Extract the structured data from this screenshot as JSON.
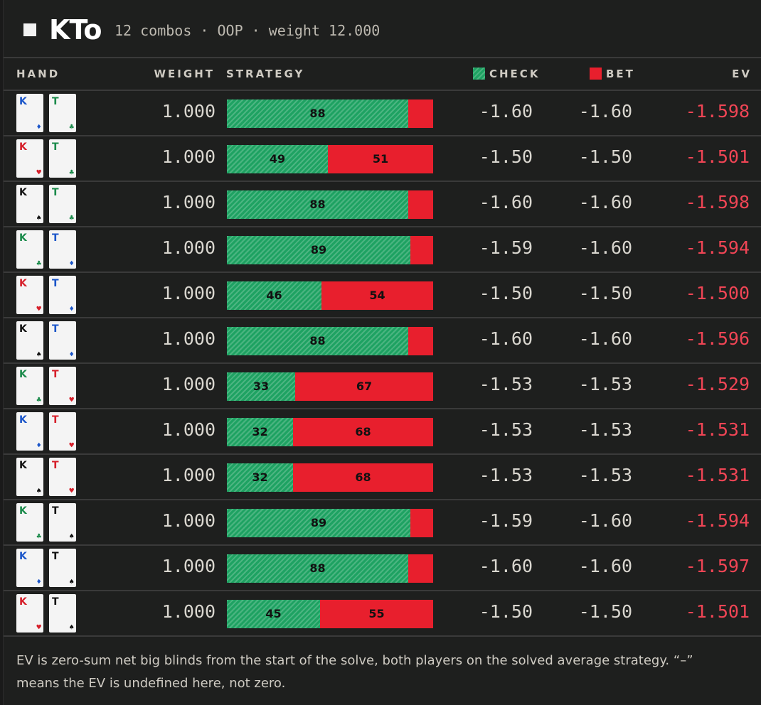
{
  "header": {
    "hand": "KTo",
    "subtitle": "12 combos · OOP · weight 12.000"
  },
  "columns": {
    "hand": "HAND",
    "weight": "WEIGHT",
    "strategy": "STRATEGY",
    "check": "CHECK",
    "bet": "BET",
    "ev": "EV"
  },
  "colors": {
    "check": "#1ea262",
    "bet": "#e81f2d",
    "ev": "#f04555",
    "red_suit": "#d61f2a",
    "blue_suit": "#1a55c9",
    "green_suit": "#1a8a4a",
    "black_suit": "#111111"
  },
  "rows": [
    {
      "c1": {
        "rank": "K",
        "suit": "♦",
        "color": "blue"
      },
      "c2": {
        "rank": "T",
        "suit": "♣",
        "color": "green"
      },
      "weight": "1.000",
      "check_pct": 88,
      "bet_pct": 12,
      "check_label": "88",
      "bet_label": "",
      "check_ev": "-1.60",
      "bet_ev": "-1.60",
      "ev": "-1.598"
    },
    {
      "c1": {
        "rank": "K",
        "suit": "♥",
        "color": "red"
      },
      "c2": {
        "rank": "T",
        "suit": "♣",
        "color": "green"
      },
      "weight": "1.000",
      "check_pct": 49,
      "bet_pct": 51,
      "check_label": "49",
      "bet_label": "51",
      "check_ev": "-1.50",
      "bet_ev": "-1.50",
      "ev": "-1.501"
    },
    {
      "c1": {
        "rank": "K",
        "suit": "♠",
        "color": "black"
      },
      "c2": {
        "rank": "T",
        "suit": "♣",
        "color": "green"
      },
      "weight": "1.000",
      "check_pct": 88,
      "bet_pct": 12,
      "check_label": "88",
      "bet_label": "",
      "check_ev": "-1.60",
      "bet_ev": "-1.60",
      "ev": "-1.598"
    },
    {
      "c1": {
        "rank": "K",
        "suit": "♣",
        "color": "green"
      },
      "c2": {
        "rank": "T",
        "suit": "♦",
        "color": "blue"
      },
      "weight": "1.000",
      "check_pct": 89,
      "bet_pct": 11,
      "check_label": "89",
      "bet_label": "",
      "check_ev": "-1.59",
      "bet_ev": "-1.60",
      "ev": "-1.594"
    },
    {
      "c1": {
        "rank": "K",
        "suit": "♥",
        "color": "red"
      },
      "c2": {
        "rank": "T",
        "suit": "♦",
        "color": "blue"
      },
      "weight": "1.000",
      "check_pct": 46,
      "bet_pct": 54,
      "check_label": "46",
      "bet_label": "54",
      "check_ev": "-1.50",
      "bet_ev": "-1.50",
      "ev": "-1.500"
    },
    {
      "c1": {
        "rank": "K",
        "suit": "♠",
        "color": "black"
      },
      "c2": {
        "rank": "T",
        "suit": "♦",
        "color": "blue"
      },
      "weight": "1.000",
      "check_pct": 88,
      "bet_pct": 12,
      "check_label": "88",
      "bet_label": "",
      "check_ev": "-1.60",
      "bet_ev": "-1.60",
      "ev": "-1.596"
    },
    {
      "c1": {
        "rank": "K",
        "suit": "♣",
        "color": "green"
      },
      "c2": {
        "rank": "T",
        "suit": "♥",
        "color": "red"
      },
      "weight": "1.000",
      "check_pct": 33,
      "bet_pct": 67,
      "check_label": "33",
      "bet_label": "67",
      "check_ev": "-1.53",
      "bet_ev": "-1.53",
      "ev": "-1.529"
    },
    {
      "c1": {
        "rank": "K",
        "suit": "♦",
        "color": "blue"
      },
      "c2": {
        "rank": "T",
        "suit": "♥",
        "color": "red"
      },
      "weight": "1.000",
      "check_pct": 32,
      "bet_pct": 68,
      "check_label": "32",
      "bet_label": "68",
      "check_ev": "-1.53",
      "bet_ev": "-1.53",
      "ev": "-1.531"
    },
    {
      "c1": {
        "rank": "K",
        "suit": "♠",
        "color": "black"
      },
      "c2": {
        "rank": "T",
        "suit": "♥",
        "color": "red"
      },
      "weight": "1.000",
      "check_pct": 32,
      "bet_pct": 68,
      "check_label": "32",
      "bet_label": "68",
      "check_ev": "-1.53",
      "bet_ev": "-1.53",
      "ev": "-1.531"
    },
    {
      "c1": {
        "rank": "K",
        "suit": "♣",
        "color": "green"
      },
      "c2": {
        "rank": "T",
        "suit": "♠",
        "color": "black"
      },
      "weight": "1.000",
      "check_pct": 89,
      "bet_pct": 11,
      "check_label": "89",
      "bet_label": "",
      "check_ev": "-1.59",
      "bet_ev": "-1.60",
      "ev": "-1.594"
    },
    {
      "c1": {
        "rank": "K",
        "suit": "♦",
        "color": "blue"
      },
      "c2": {
        "rank": "T",
        "suit": "♠",
        "color": "black"
      },
      "weight": "1.000",
      "check_pct": 88,
      "bet_pct": 12,
      "check_label": "88",
      "bet_label": "",
      "check_ev": "-1.60",
      "bet_ev": "-1.60",
      "ev": "-1.597"
    },
    {
      "c1": {
        "rank": "K",
        "suit": "♥",
        "color": "red"
      },
      "c2": {
        "rank": "T",
        "suit": "♠",
        "color": "black"
      },
      "weight": "1.000",
      "check_pct": 45,
      "bet_pct": 55,
      "check_label": "45",
      "bet_label": "55",
      "check_ev": "-1.50",
      "bet_ev": "-1.50",
      "ev": "-1.501"
    }
  ],
  "footer": {
    "note": "EV is zero-sum net big blinds from the start of the solve, both players on the solved average strategy. “–” means the EV is undefined here, not zero."
  }
}
